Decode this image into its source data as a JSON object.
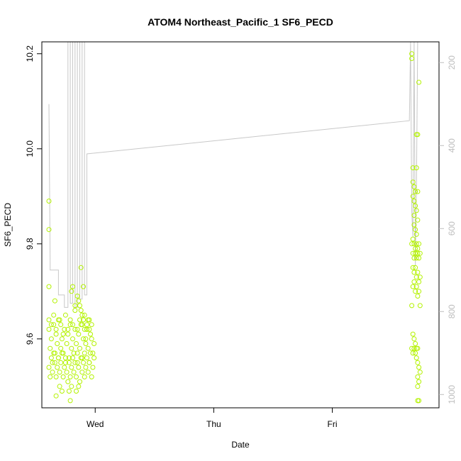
{
  "chart_data": {
    "type": "scatter",
    "title": "ATOM4 Northeast_Pacific_1 SF6_PECD",
    "xlabel": "Date",
    "ylabel": "SF6_PECD",
    "x_ticks": [
      "Wed",
      "Thu",
      "Fri"
    ],
    "y_ticks": [
      "9.6",
      "9.8",
      "10.0",
      "10.2"
    ],
    "y2_ticks": [
      "200",
      "400",
      "600",
      "800",
      "1000"
    ],
    "ylim": [
      9.455,
      10.225
    ],
    "y2lim": [
      1032,
      150
    ],
    "xlim_days": [
      -0.45,
      2.9
    ],
    "y2_reversed": true,
    "grid": false,
    "point_color": "#b3f200",
    "line_color": "#c8c8c8",
    "series": [
      {
        "kind": "points",
        "x_days": [
          -0.39,
          -0.38,
          -0.37,
          -0.36,
          -0.35,
          -0.34,
          -0.33,
          -0.32,
          -0.31,
          -0.3,
          -0.29,
          -0.28,
          -0.27,
          -0.26,
          -0.25,
          -0.24,
          -0.23,
          -0.22,
          -0.21,
          -0.2,
          -0.19,
          -0.18,
          -0.17,
          -0.16,
          -0.15,
          -0.14,
          -0.13,
          -0.12,
          -0.11,
          -0.1,
          -0.09,
          -0.08,
          -0.07,
          -0.06,
          -0.05,
          -0.04,
          -0.03,
          -0.02,
          -0.01,
          -0.39,
          -0.38,
          -0.37,
          -0.36,
          -0.35,
          -0.34,
          -0.33,
          -0.32,
          -0.31,
          -0.3,
          -0.29,
          -0.28,
          -0.27,
          -0.26,
          -0.25,
          -0.24,
          -0.23,
          -0.22,
          -0.21,
          -0.2,
          -0.19,
          -0.18,
          -0.17,
          -0.16,
          -0.15,
          -0.14,
          -0.13,
          -0.12,
          -0.11,
          -0.1,
          -0.09,
          -0.08,
          -0.07,
          -0.06,
          -0.05,
          -0.04,
          -0.03,
          -0.02,
          -0.01,
          -0.39,
          -0.37,
          -0.35,
          -0.33,
          -0.31,
          -0.29,
          -0.27,
          -0.25,
          -0.23,
          -0.21,
          -0.19,
          -0.17,
          -0.15,
          -0.13,
          -0.11,
          -0.09,
          -0.07,
          -0.05,
          -0.03,
          -0.39,
          -0.39,
          -0.39,
          -0.34,
          -0.2,
          -0.19,
          -0.17,
          -0.15,
          -0.14,
          -0.13,
          -0.12,
          -0.11,
          -0.1,
          -0.09,
          -0.08,
          -0.07,
          -0.06,
          -0.05,
          -0.33,
          -0.3,
          -0.28,
          -0.22,
          -0.21,
          -0.2,
          -0.16,
          -0.14,
          -0.12,
          -0.1,
          2.67,
          2.67,
          2.68,
          2.69,
          2.7,
          2.68,
          2.69,
          2.7,
          2.71,
          2.72,
          2.67,
          2.68,
          2.69,
          2.7,
          2.71,
          2.72,
          2.73,
          2.68,
          2.69,
          2.7,
          2.71,
          2.72,
          2.73,
          2.74,
          2.68,
          2.69,
          2.7,
          2.71,
          2.72,
          2.73,
          2.74,
          2.68,
          2.69,
          2.7,
          2.71,
          2.72,
          2.73,
          2.74,
          2.68,
          2.69,
          2.7,
          2.71,
          2.72,
          2.67,
          2.68,
          2.69,
          2.7,
          2.71,
          2.72,
          2.73,
          2.74,
          2.72,
          2.73,
          2.72,
          2.72,
          2.73,
          2.68,
          2.69,
          2.71,
          2.72,
          2.71,
          2.7,
          2.69,
          2.67,
          2.73,
          2.72,
          2.71
        ],
        "y": [
          9.62,
          9.58,
          9.6,
          9.55,
          9.63,
          9.57,
          9.61,
          9.59,
          9.56,
          9.64,
          9.58,
          9.6,
          9.57,
          9.62,
          9.55,
          9.59,
          9.61,
          9.56,
          9.63,
          9.58,
          9.6,
          9.57,
          9.62,
          9.59,
          9.55,
          9.61,
          9.58,
          9.63,
          9.56,
          9.6,
          9.57,
          9.59,
          9.62,
          9.58,
          9.55,
          9.61,
          9.6,
          9.57,
          9.59,
          9.54,
          9.52,
          9.56,
          9.53,
          9.57,
          9.55,
          9.52,
          9.54,
          9.56,
          9.53,
          9.55,
          9.57,
          9.52,
          9.54,
          9.56,
          9.53,
          9.51,
          9.55,
          9.52,
          9.54,
          9.56,
          9.53,
          9.55,
          9.52,
          9.57,
          9.54,
          9.51,
          9.56,
          9.53,
          9.55,
          9.52,
          9.54,
          9.56,
          9.53,
          9.55,
          9.57,
          9.52,
          9.54,
          9.56,
          9.64,
          9.63,
          9.65,
          9.62,
          9.64,
          9.63,
          9.61,
          9.65,
          9.62,
          9.64,
          9.63,
          9.66,
          9.62,
          9.64,
          9.63,
          9.65,
          9.62,
          9.64,
          9.63,
          9.89,
          9.83,
          9.71,
          9.68,
          9.7,
          9.71,
          9.67,
          9.69,
          9.68,
          9.67,
          9.66,
          9.65,
          9.64,
          9.62,
          9.6,
          9.63,
          9.64,
          9.62,
          9.48,
          9.5,
          9.49,
          9.49,
          9.47,
          9.5,
          9.49,
          9.5,
          9.75,
          9.71,
          10.2,
          10.19,
          9.96,
          9.92,
          9.91,
          9.9,
          9.89,
          9.88,
          9.87,
          9.85,
          9.8,
          9.81,
          9.8,
          9.79,
          9.8,
          9.79,
          9.8,
          9.78,
          9.77,
          9.78,
          9.77,
          9.78,
          9.77,
          9.78,
          9.75,
          9.74,
          9.75,
          9.73,
          9.74,
          9.72,
          9.73,
          9.71,
          9.72,
          9.7,
          9.71,
          9.69,
          9.7,
          9.67,
          9.61,
          9.6,
          9.59,
          9.58,
          9.58,
          9.58,
          9.57,
          9.58,
          9.57,
          9.56,
          9.55,
          9.54,
          9.53,
          9.52,
          9.51,
          9.5,
          9.47,
          9.47,
          9.93,
          9.86,
          9.96,
          9.91,
          9.82,
          9.83,
          9.84,
          9.67,
          10.14,
          10.03,
          10.03
        ],
        "color": "#b3f200"
      },
      {
        "kind": "line",
        "x_days": [
          -0.39,
          -0.38,
          -0.38,
          -0.31,
          -0.31,
          -0.26,
          -0.26,
          -0.23,
          -0.23,
          -0.21,
          -0.21,
          -0.19,
          -0.19,
          -0.17,
          -0.17,
          -0.15,
          -0.15,
          -0.13,
          -0.13,
          -0.11,
          -0.11,
          -0.09,
          -0.09,
          -0.07,
          -0.07,
          2.65,
          2.65,
          2.66,
          2.66,
          2.67,
          2.67,
          2.68,
          2.68,
          2.69,
          2.69,
          2.7,
          2.7,
          2.71,
          2.71,
          2.72
        ],
        "y2": [
          300,
          680,
          700,
          700,
          760,
          760,
          790,
          790,
          150,
          150,
          780,
          780,
          150,
          150,
          790,
          790,
          150,
          150,
          770,
          770,
          150,
          150,
          760,
          760,
          420,
          340,
          340,
          150,
          150,
          560,
          560,
          620,
          620,
          150,
          150,
          690,
          690,
          500,
          500,
          150
        ],
        "color": "#c8c8c8"
      }
    ]
  }
}
